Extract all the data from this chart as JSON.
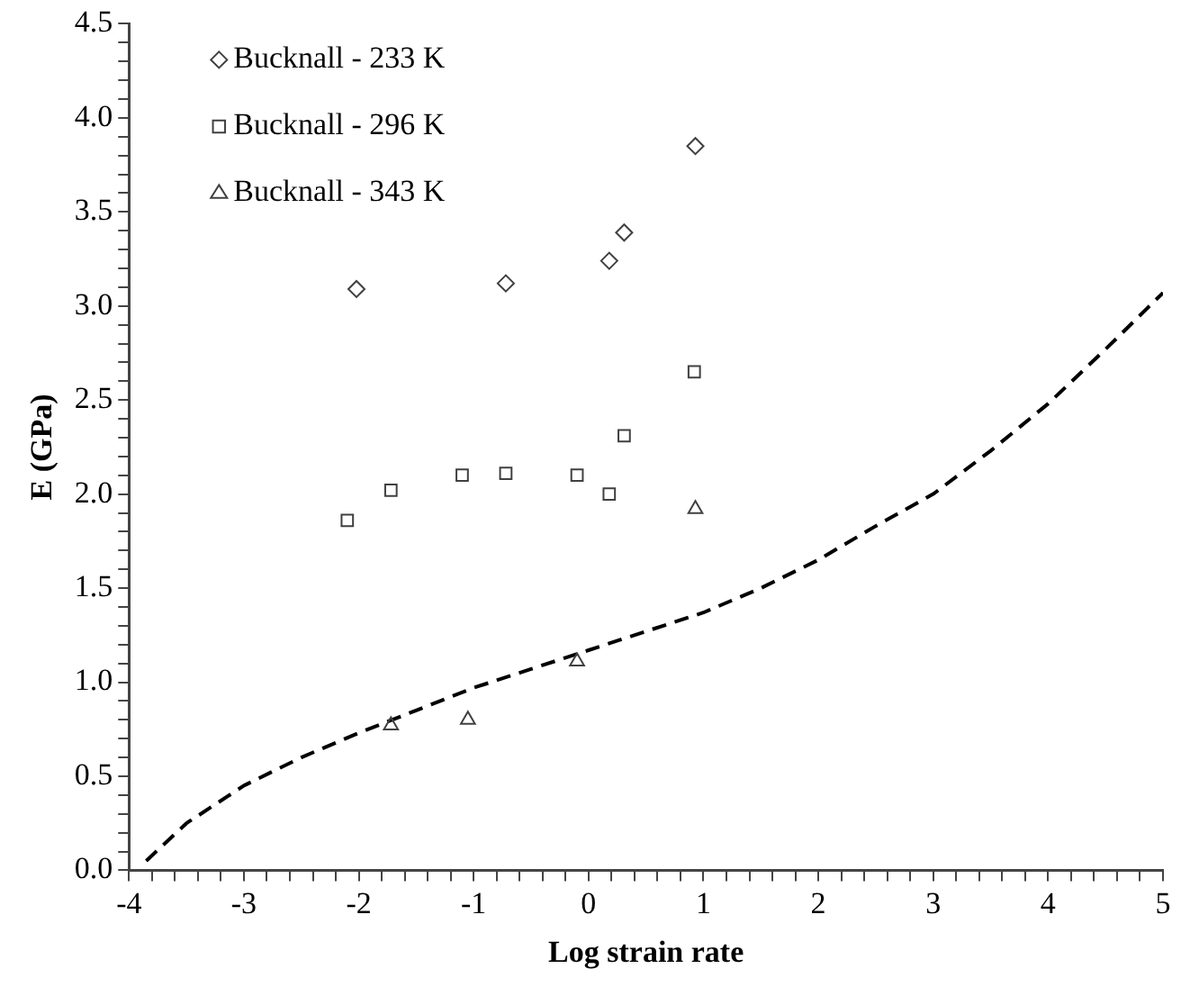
{
  "chart_data": {
    "type": "scatter",
    "xlabel": "Log strain rate",
    "ylabel": "E (GPa)",
    "xlim": [
      -4,
      5
    ],
    "xticks": [
      -4,
      {
        "value": -3.8,
        "label": null
      },
      {
        "value": -3.6,
        "label": null
      },
      {
        "value": -3.4,
        "label": null
      },
      {
        "value": -3.2,
        "label": null
      },
      -3,
      {
        "value": -2.8,
        "label": null
      },
      {
        "value": -2.6,
        "label": null
      },
      {
        "value": -2.4,
        "label": null
      },
      {
        "value": -2.2,
        "label": null
      },
      -2,
      {
        "value": -1.8,
        "label": null
      },
      {
        "value": -1.6,
        "label": null
      },
      {
        "value": -1.4,
        "label": null
      },
      {
        "value": -1.2,
        "label": null
      },
      -1,
      {
        "value": -0.8,
        "label": null
      },
      {
        "value": -0.6,
        "label": null
      },
      {
        "value": -0.4,
        "label": null
      },
      {
        "value": -0.2,
        "label": null
      },
      0,
      {
        "value": 0.2,
        "label": null
      },
      {
        "value": 0.4,
        "label": null
      },
      {
        "value": 0.6,
        "label": null
      },
      {
        "value": 0.8,
        "label": null
      },
      1,
      {
        "value": 1.2,
        "label": null
      },
      {
        "value": 1.4,
        "label": null
      },
      {
        "value": 1.6,
        "label": null
      },
      {
        "value": 1.8,
        "label": null
      },
      2,
      {
        "value": 2.2,
        "label": null
      },
      {
        "value": 2.4,
        "label": null
      },
      {
        "value": 2.6,
        "label": null
      },
      {
        "value": 2.8,
        "label": null
      },
      3,
      {
        "value": 3.2,
        "label": null
      },
      {
        "value": 3.4,
        "label": null
      },
      {
        "value": 3.6,
        "label": null
      },
      {
        "value": 3.8,
        "label": null
      },
      4,
      {
        "value": 4.2,
        "label": null
      },
      {
        "value": 4.4,
        "label": null
      },
      {
        "value": 4.6,
        "label": null
      },
      {
        "value": 4.8,
        "label": null
      },
      5
    ],
    "ylim": [
      0,
      4.5
    ],
    "yticks": [
      {
        "value": 0,
        "label": "0.0"
      },
      {
        "value": 0.1,
        "label": null
      },
      {
        "value": 0.2,
        "label": null
      },
      {
        "value": 0.3,
        "label": null
      },
      {
        "value": 0.4,
        "label": null
      },
      0.5,
      {
        "value": 0.6,
        "label": null
      },
      {
        "value": 0.7,
        "label": null
      },
      {
        "value": 0.8,
        "label": null
      },
      {
        "value": 0.9,
        "label": null
      },
      {
        "value": 1,
        "label": "1.0"
      },
      {
        "value": 1.1,
        "label": null
      },
      {
        "value": 1.2,
        "label": null
      },
      {
        "value": 1.3,
        "label": null
      },
      {
        "value": 1.4,
        "label": null
      },
      1.5,
      {
        "value": 1.6,
        "label": null
      },
      {
        "value": 1.7,
        "label": null
      },
      {
        "value": 1.8,
        "label": null
      },
      {
        "value": 1.9,
        "label": null
      },
      {
        "value": 2,
        "label": "2.0"
      },
      {
        "value": 2.1,
        "label": null
      },
      {
        "value": 2.2,
        "label": null
      },
      {
        "value": 2.3,
        "label": null
      },
      {
        "value": 2.4,
        "label": null
      },
      2.5,
      {
        "value": 2.6,
        "label": null
      },
      {
        "value": 2.7,
        "label": null
      },
      {
        "value": 2.8,
        "label": null
      },
      {
        "value": 2.9,
        "label": null
      },
      {
        "value": 3,
        "label": "3.0"
      },
      {
        "value": 3.1,
        "label": null
      },
      {
        "value": 3.2,
        "label": null
      },
      {
        "value": 3.3,
        "label": null
      },
      {
        "value": 3.4,
        "label": null
      },
      3.5,
      {
        "value": 3.6,
        "label": null
      },
      {
        "value": 3.7,
        "label": null
      },
      {
        "value": 3.8,
        "label": null
      },
      {
        "value": 3.9,
        "label": null
      },
      {
        "value": 4,
        "label": "4.0"
      },
      {
        "value": 4.1,
        "label": null
      },
      {
        "value": 4.2,
        "label": null
      },
      {
        "value": 4.3,
        "label": null
      },
      {
        "value": 4.4,
        "label": null
      },
      4.5
    ],
    "grid": false,
    "legend": "top left",
    "series": [
      {
        "name": "Bucknall - 233 K",
        "color": "#404040",
        "marker": "diamond",
        "x": [
          -2.02,
          -0.72,
          0.18,
          0.31,
          0.93
        ],
        "values": [
          3.09,
          3.12,
          3.24,
          3.39,
          3.85
        ]
      },
      {
        "name": "Bucknall - 296 K",
        "color": "#404040",
        "marker": "square",
        "x": [
          -2.1,
          -1.72,
          -1.1,
          -0.72,
          -0.1,
          0.18,
          0.31,
          0.92
        ],
        "values": [
          1.86,
          2.02,
          2.1,
          2.11,
          2.1,
          2.0,
          2.31,
          2.65
        ]
      },
      {
        "name": "Bucknall - 343 K",
        "color": "#404040",
        "marker": "triangle",
        "x": [
          -1.72,
          -1.05,
          -0.1,
          0.93
        ],
        "values": [
          0.77,
          0.8,
          1.11,
          1.92
        ]
      },
      {
        "type": "line",
        "color": "#000000",
        "marker": "none",
        "line_style": "dashed",
        "x": [
          -3.85,
          -3.5,
          -3,
          -2.5,
          -2,
          -1.5,
          -1,
          -0.5,
          0,
          0.5,
          1,
          1.5,
          2,
          2.5,
          3,
          3.5,
          4,
          4.5,
          5
        ],
        "values": [
          0.05,
          0.25,
          0.45,
          0.6,
          0.73,
          0.85,
          0.97,
          1.07,
          1.17,
          1.27,
          1.37,
          1.5,
          1.65,
          1.83,
          2.0,
          2.23,
          2.48,
          2.77,
          3.07
        ]
      }
    ]
  }
}
